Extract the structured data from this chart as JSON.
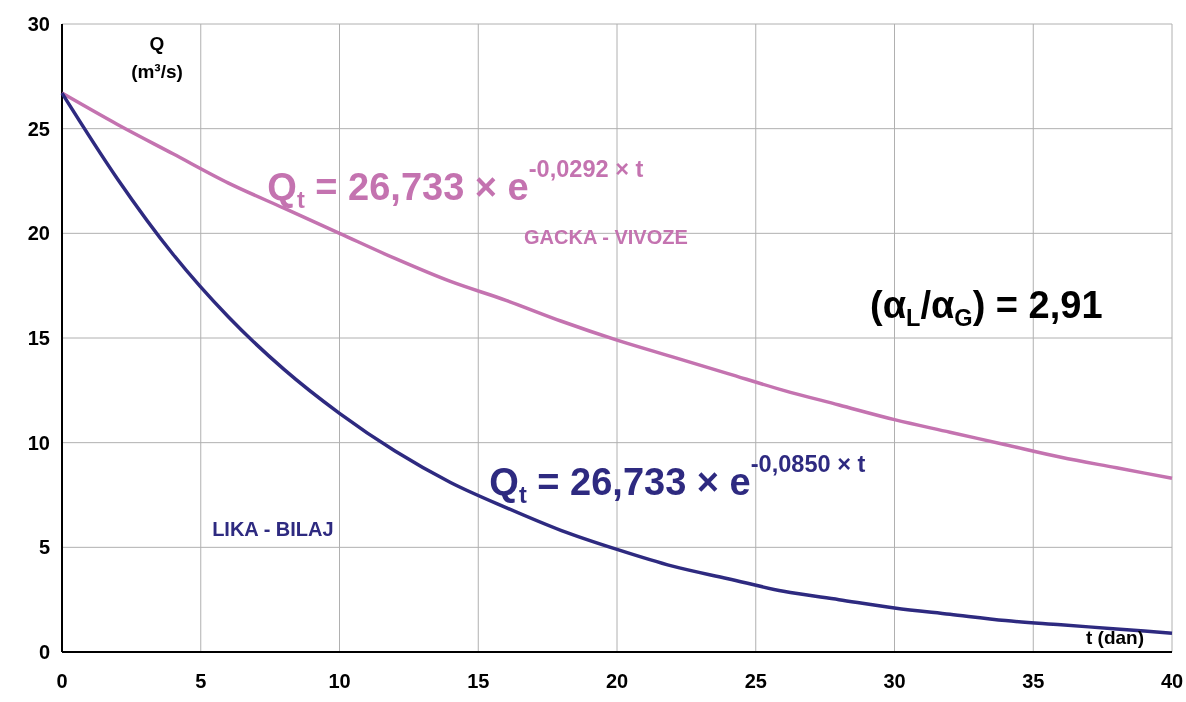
{
  "chart_data": {
    "type": "line",
    "xlabel": "t (dan)",
    "ylabel": "Q (m³/s)",
    "x": [
      0,
      2,
      4,
      6,
      8,
      10,
      12,
      14,
      16,
      18,
      20,
      22,
      24,
      26,
      28,
      30,
      32,
      34,
      36,
      38,
      40
    ],
    "series": [
      {
        "name": "GACKA - VIVOZE",
        "color": "#c473b0",
        "values": [
          26.7,
          25.2,
          23.8,
          22.4,
          21.2,
          20.0,
          18.8,
          17.7,
          16.8,
          15.8,
          14.9,
          14.1,
          13.3,
          12.5,
          11.8,
          11.1,
          10.5,
          9.9,
          9.3,
          8.8,
          8.3
        ]
      },
      {
        "name": "LIKA - BILAJ",
        "color": "#2e2a80",
        "values": [
          26.7,
          22.6,
          19.0,
          16.0,
          13.5,
          11.4,
          9.6,
          8.1,
          6.9,
          5.8,
          4.9,
          4.1,
          3.5,
          2.9,
          2.5,
          2.1,
          1.8,
          1.5,
          1.3,
          1.1,
          0.9
        ]
      }
    ],
    "xlim": [
      0,
      40
    ],
    "xticks": [
      0,
      5,
      10,
      15,
      20,
      25,
      30,
      35,
      40
    ],
    "ylim": [
      0,
      30
    ],
    "yticks": [
      0,
      5,
      10,
      15,
      20,
      25,
      30
    ],
    "grid": true,
    "marker": "none",
    "line_style": "solid",
    "annotations": [
      {
        "text": "Q$_{t}$ = 26,733 × e$^{-0,0292 × t}$",
        "x": 7.4,
        "y": 21.6
      },
      {
        "text": "Q$_{t}$ = 26,733 × e$^{-0,0850 × t}$",
        "x": 15.4,
        "y": 7.5
      },
      "(α$_{L}$/α$_{G}$) = 2,91"
    ]
  }
}
